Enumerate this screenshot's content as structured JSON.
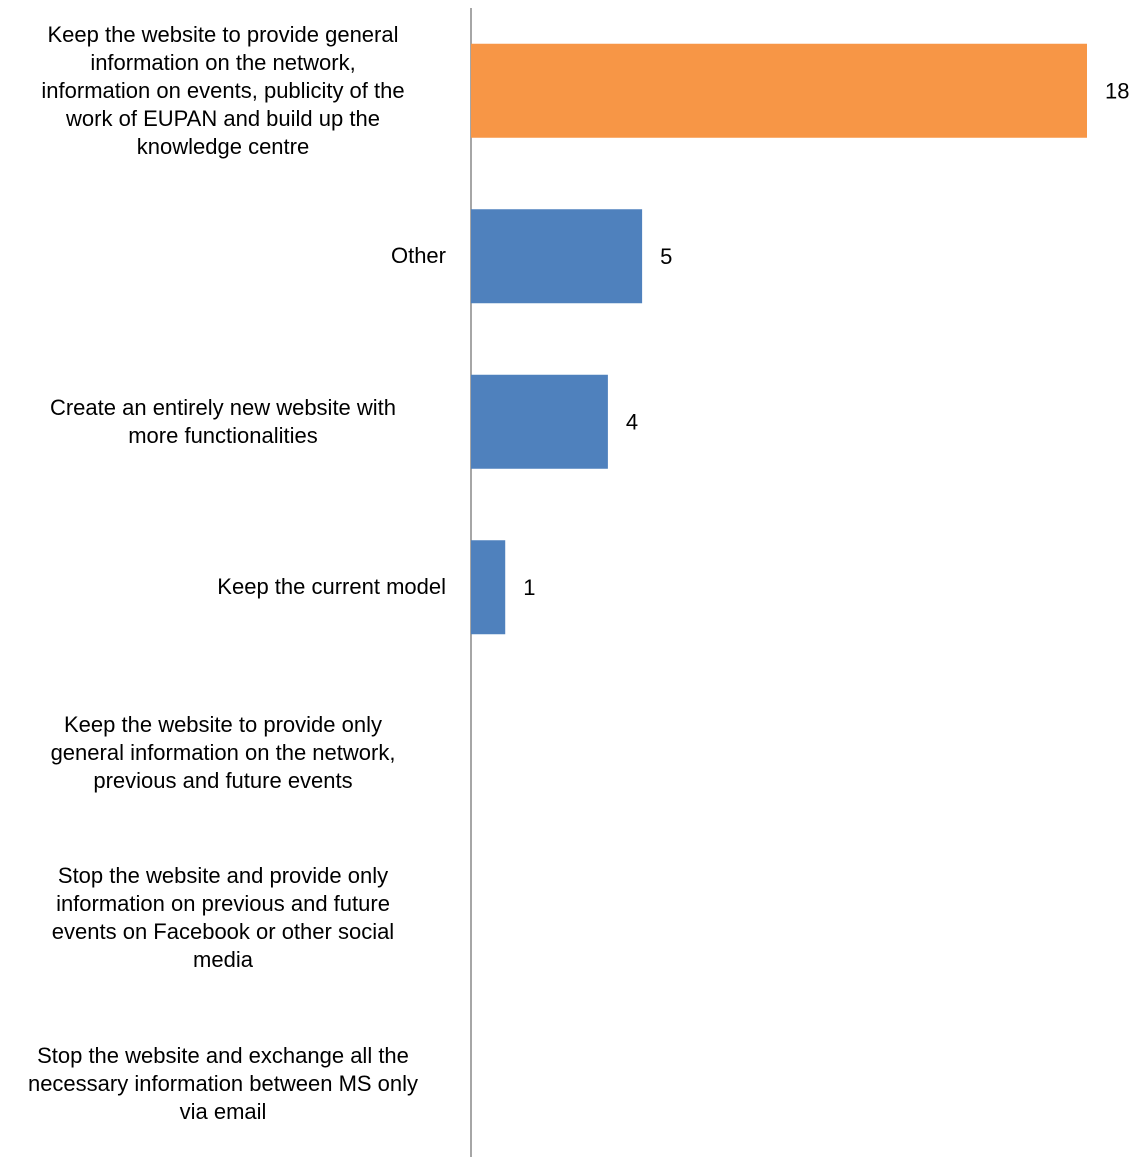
{
  "chart_data": {
    "type": "bar",
    "orientation": "horizontal",
    "categories": [
      "Keep the website to provide general information on the network, information on events, publicity of the work of EUPAN and build up the knowledge centre",
      "Other",
      "Create an entirely new website with more functionalities",
      "Keep the current model",
      "Keep the website to provide only general information on the network, previous and future events",
      "Stop the website and provide only information on previous and future events on Facebook or other social media",
      "Stop the website and exchange all the necessary information between MS only via email"
    ],
    "label_lines": [
      [
        "Keep the website to provide general",
        "information on the network,",
        "information on events, publicity of the",
        "work of EUPAN and build up the",
        "knowledge centre"
      ],
      [
        "Other"
      ],
      [
        "Create an entirely new website with",
        "more functionalities"
      ],
      [
        "Keep the current model"
      ],
      [
        "Keep the website to provide only",
        "general information on the network,",
        "previous and future events"
      ],
      [
        "Stop the website and provide only",
        "information on previous and future",
        "events on Facebook or other social",
        "media"
      ],
      [
        "Stop the website and exchange all the",
        "necessary information between MS only",
        "via email"
      ]
    ],
    "values": [
      18,
      5,
      4,
      1,
      0,
      0,
      0
    ],
    "data_labels": [
      "18",
      "5",
      "4",
      "1",
      "",
      "",
      ""
    ],
    "colors": [
      "#F79646",
      "#4F81BD",
      "#4F81BD",
      "#4F81BD",
      "#4F81BD",
      "#4F81BD",
      "#4F81BD"
    ],
    "xlim": [
      0,
      18
    ],
    "grid": false,
    "legend": "none",
    "title": "",
    "xlabel": "",
    "ylabel": ""
  }
}
